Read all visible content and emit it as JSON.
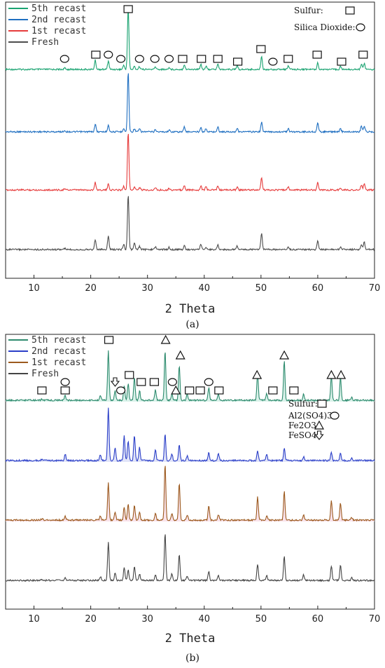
{
  "chart_data": [
    {
      "panel": "(a)",
      "type": "line",
      "xlabel": "2 Theta",
      "ylabel": "",
      "xlim": [
        5,
        70
      ],
      "x_ticks": [
        "10",
        "20",
        "30",
        "40",
        "50",
        "60",
        "70"
      ],
      "legend_position": "top-left",
      "series": [
        {
          "name": "5th recast",
          "color": "#1aa371",
          "peaks": [
            [
              15.4,
              0.02
            ],
            [
              20.8,
              0.15
            ],
            [
              23.1,
              0.14
            ],
            [
              25.8,
              0.07
            ],
            [
              26.6,
              1.0
            ],
            [
              27.7,
              0.05
            ],
            [
              28.6,
              0.05
            ],
            [
              31.4,
              0.04
            ],
            [
              33.8,
              0.03
            ],
            [
              36.5,
              0.08
            ],
            [
              39.4,
              0.09
            ],
            [
              40.3,
              0.05
            ],
            [
              42.4,
              0.09
            ],
            [
              45.8,
              0.07
            ],
            [
              50.1,
              0.22
            ],
            [
              54.8,
              0.06
            ],
            [
              60.0,
              0.11
            ],
            [
              64.0,
              0.05
            ],
            [
              67.7,
              0.09
            ],
            [
              68.2,
              0.1
            ]
          ]
        },
        {
          "name": "2nd recast",
          "color": "#1f6fc1",
          "peaks": [
            [
              15.4,
              0.02
            ],
            [
              20.8,
              0.13
            ],
            [
              23.1,
              0.12
            ],
            [
              25.8,
              0.06
            ],
            [
              26.6,
              1.0
            ],
            [
              27.7,
              0.05
            ],
            [
              28.6,
              0.05
            ],
            [
              31.4,
              0.04
            ],
            [
              33.8,
              0.03
            ],
            [
              36.5,
              0.08
            ],
            [
              39.4,
              0.08
            ],
            [
              40.3,
              0.05
            ],
            [
              42.4,
              0.08
            ],
            [
              45.8,
              0.06
            ],
            [
              50.1,
              0.16
            ],
            [
              54.8,
              0.05
            ],
            [
              60.0,
              0.15
            ],
            [
              64.0,
              0.05
            ],
            [
              67.7,
              0.1
            ],
            [
              68.2,
              0.1
            ]
          ]
        },
        {
          "name": "1st recast",
          "color": "#e63c3c",
          "peaks": [
            [
              15.4,
              0.02
            ],
            [
              20.8,
              0.13
            ],
            [
              23.1,
              0.1
            ],
            [
              25.8,
              0.06
            ],
            [
              26.6,
              1.0
            ],
            [
              27.7,
              0.05
            ],
            [
              28.6,
              0.04
            ],
            [
              31.4,
              0.04
            ],
            [
              33.8,
              0.03
            ],
            [
              36.5,
              0.07
            ],
            [
              39.4,
              0.07
            ],
            [
              40.3,
              0.05
            ],
            [
              42.4,
              0.07
            ],
            [
              45.8,
              0.05
            ],
            [
              50.1,
              0.22
            ],
            [
              54.8,
              0.05
            ],
            [
              60.0,
              0.13
            ],
            [
              64.0,
              0.04
            ],
            [
              67.7,
              0.08
            ],
            [
              68.2,
              0.11
            ]
          ]
        },
        {
          "name": "Fresh",
          "color": "#4d4d4d",
          "peaks": [
            [
              15.4,
              0.02
            ],
            [
              20.8,
              0.18
            ],
            [
              23.1,
              0.24
            ],
            [
              25.8,
              0.1
            ],
            [
              26.6,
              1.0
            ],
            [
              27.7,
              0.11
            ],
            [
              28.6,
              0.06
            ],
            [
              31.4,
              0.05
            ],
            [
              33.8,
              0.04
            ],
            [
              36.5,
              0.07
            ],
            [
              39.4,
              0.1
            ],
            [
              40.3,
              0.05
            ],
            [
              42.4,
              0.09
            ],
            [
              45.8,
              0.07
            ],
            [
              50.1,
              0.3
            ],
            [
              54.8,
              0.05
            ],
            [
              60.0,
              0.16
            ],
            [
              64.0,
              0.05
            ],
            [
              67.7,
              0.09
            ],
            [
              68.2,
              0.13
            ]
          ]
        }
      ],
      "markers": [
        {
          "x": 15.4,
          "row": 3,
          "shape": "circle"
        },
        {
          "x": 20.9,
          "row": 2,
          "shape": "square"
        },
        {
          "x": 23.1,
          "row": 2,
          "shape": "circle"
        },
        {
          "x": 25.3,
          "row": 3,
          "shape": "circle"
        },
        {
          "x": 26.6,
          "row": 0,
          "shape": "square"
        },
        {
          "x": 28.6,
          "row": 3,
          "shape": "circle"
        },
        {
          "x": 31.3,
          "row": 3,
          "shape": "circle"
        },
        {
          "x": 33.8,
          "row": 3,
          "shape": "circle"
        },
        {
          "x": 36.2,
          "row": 3,
          "shape": "square"
        },
        {
          "x": 39.5,
          "row": 3,
          "shape": "square"
        },
        {
          "x": 42.4,
          "row": 3,
          "shape": "square"
        },
        {
          "x": 45.9,
          "row": 4,
          "shape": "square"
        },
        {
          "x": 50.0,
          "row": 1,
          "shape": "square"
        },
        {
          "x": 52.1,
          "row": 4,
          "shape": "circle"
        },
        {
          "x": 54.8,
          "row": 3,
          "shape": "square"
        },
        {
          "x": 59.9,
          "row": 2,
          "shape": "square"
        },
        {
          "x": 64.2,
          "row": 4,
          "shape": "square"
        },
        {
          "x": 68.0,
          "row": 2,
          "shape": "square"
        }
      ],
      "phase_key": [
        {
          "label": "Sulfur:",
          "shape": "square"
        },
        {
          "label": "Silica Dioxide:",
          "shape": "circle"
        }
      ],
      "caption": "(a)"
    },
    {
      "panel": "(b)",
      "type": "line",
      "xlabel": "2 Theta",
      "ylabel": "",
      "xlim": [
        5,
        70
      ],
      "x_ticks": [
        "10",
        "20",
        "30",
        "40",
        "50",
        "60",
        "70"
      ],
      "legend_position": "top-left",
      "series": [
        {
          "name": "5th recast",
          "color": "#2e8b6e",
          "fill": "#cdeee3",
          "peaks": [
            [
              11.4,
              0.02
            ],
            [
              15.5,
              0.08
            ],
            [
              21.7,
              0.08
            ],
            [
              23.1,
              0.77
            ],
            [
              24.3,
              0.15
            ],
            [
              25.9,
              0.23
            ],
            [
              26.6,
              0.26
            ],
            [
              27.7,
              0.36
            ],
            [
              28.6,
              0.15
            ],
            [
              31.4,
              0.16
            ],
            [
              33.1,
              0.77
            ],
            [
              34.3,
              0.1
            ],
            [
              35.6,
              0.55
            ],
            [
              37.0,
              0.1
            ],
            [
              40.8,
              0.2
            ],
            [
              42.5,
              0.09
            ],
            [
              49.4,
              0.42
            ],
            [
              51.0,
              0.1
            ],
            [
              54.1,
              0.62
            ],
            [
              57.5,
              0.1
            ],
            [
              62.4,
              0.38
            ],
            [
              64.0,
              0.36
            ],
            [
              66.0,
              0.05
            ]
          ]
        },
        {
          "name": "2nd recast",
          "color": "#2b3fc8",
          "fill": "#d7dbf5",
          "peaks": [
            [
              11.4,
              0.02
            ],
            [
              15.5,
              0.1
            ],
            [
              21.7,
              0.09
            ],
            [
              23.1,
              0.8
            ],
            [
              24.3,
              0.19
            ],
            [
              25.9,
              0.37
            ],
            [
              26.6,
              0.3
            ],
            [
              27.7,
              0.38
            ],
            [
              28.6,
              0.2
            ],
            [
              31.4,
              0.17
            ],
            [
              33.1,
              0.4
            ],
            [
              34.3,
              0.1
            ],
            [
              35.6,
              0.23
            ],
            [
              37.0,
              0.07
            ],
            [
              40.8,
              0.12
            ],
            [
              42.5,
              0.1
            ],
            [
              49.4,
              0.14
            ],
            [
              51.0,
              0.09
            ],
            [
              54.1,
              0.19
            ],
            [
              57.5,
              0.06
            ],
            [
              62.4,
              0.12
            ],
            [
              64.0,
              0.11
            ],
            [
              66.0,
              0.04
            ]
          ]
        },
        {
          "name": "1st recast",
          "color": "#9c5a1e",
          "fill": "#f7d9e6",
          "peaks": [
            [
              11.4,
              0.02
            ],
            [
              15.5,
              0.06
            ],
            [
              21.7,
              0.06
            ],
            [
              23.1,
              0.53
            ],
            [
              24.3,
              0.12
            ],
            [
              25.9,
              0.19
            ],
            [
              26.6,
              0.23
            ],
            [
              27.7,
              0.22
            ],
            [
              28.6,
              0.12
            ],
            [
              31.4,
              0.1
            ],
            [
              33.1,
              0.81
            ],
            [
              34.3,
              0.1
            ],
            [
              35.6,
              0.53
            ],
            [
              37.0,
              0.08
            ],
            [
              40.8,
              0.2
            ],
            [
              42.5,
              0.08
            ],
            [
              49.4,
              0.33
            ],
            [
              51.0,
              0.06
            ],
            [
              54.1,
              0.41
            ],
            [
              57.5,
              0.08
            ],
            [
              62.4,
              0.28
            ],
            [
              64.0,
              0.25
            ],
            [
              66.0,
              0.04
            ]
          ]
        },
        {
          "name": "Fresh",
          "color": "#444444",
          "fill": "#ffffff",
          "peaks": [
            [
              11.4,
              0.02
            ],
            [
              15.5,
              0.05
            ],
            [
              21.7,
              0.06
            ],
            [
              23.1,
              0.59
            ],
            [
              24.3,
              0.11
            ],
            [
              25.9,
              0.2
            ],
            [
              26.6,
              0.16
            ],
            [
              27.7,
              0.22
            ],
            [
              28.6,
              0.1
            ],
            [
              31.4,
              0.08
            ],
            [
              33.1,
              0.73
            ],
            [
              34.3,
              0.1
            ],
            [
              35.6,
              0.41
            ],
            [
              37.0,
              0.06
            ],
            [
              40.8,
              0.14
            ],
            [
              42.5,
              0.07
            ],
            [
              49.4,
              0.25
            ],
            [
              51.0,
              0.08
            ],
            [
              54.1,
              0.37
            ],
            [
              57.5,
              0.09
            ],
            [
              62.4,
              0.22
            ],
            [
              64.0,
              0.23
            ],
            [
              66.0,
              0.04
            ]
          ]
        }
      ],
      "markers": [
        {
          "x": 11.4,
          "row": 5,
          "shape": "square"
        },
        {
          "x": 15.5,
          "row": 5,
          "shape": "square"
        },
        {
          "x": 15.5,
          "row": 4,
          "shape": "circle"
        },
        {
          "x": 23.2,
          "row": 0,
          "shape": "square"
        },
        {
          "x": 24.3,
          "row": 4,
          "shape": "arrow"
        },
        {
          "x": 25.3,
          "row": 5,
          "shape": "circle"
        },
        {
          "x": 26.8,
          "row": 3,
          "shape": "square"
        },
        {
          "x": 28.9,
          "row": 4,
          "shape": "square"
        },
        {
          "x": 31.2,
          "row": 4,
          "shape": "square"
        },
        {
          "x": 33.2,
          "row": 0,
          "shape": "triangle"
        },
        {
          "x": 34.4,
          "row": 4,
          "shape": "circle"
        },
        {
          "x": 35.0,
          "row": 5,
          "shape": "triangle"
        },
        {
          "x": 35.8,
          "row": 1,
          "shape": "triangle"
        },
        {
          "x": 37.4,
          "row": 5,
          "shape": "square"
        },
        {
          "x": 39.3,
          "row": 5,
          "shape": "square"
        },
        {
          "x": 40.8,
          "row": 4,
          "shape": "circle"
        },
        {
          "x": 42.6,
          "row": 5,
          "shape": "square"
        },
        {
          "x": 49.3,
          "row": 3,
          "shape": "triangle"
        },
        {
          "x": 52.1,
          "row": 5,
          "shape": "square"
        },
        {
          "x": 54.1,
          "row": 1,
          "shape": "triangle"
        },
        {
          "x": 55.8,
          "row": 5,
          "shape": "square"
        },
        {
          "x": 62.4,
          "row": 3,
          "shape": "triangle"
        },
        {
          "x": 64.1,
          "row": 3,
          "shape": "triangle"
        }
      ],
      "phase_key": [
        {
          "label": "Sulfur:",
          "shape": "square"
        },
        {
          "label": "Al2(SO4)3:",
          "shape": "circle"
        },
        {
          "label": "Fe2O3:",
          "shape": "triangle"
        },
        {
          "label": "FeSO4:",
          "shape": "arrow"
        }
      ],
      "caption": "(b)"
    }
  ]
}
